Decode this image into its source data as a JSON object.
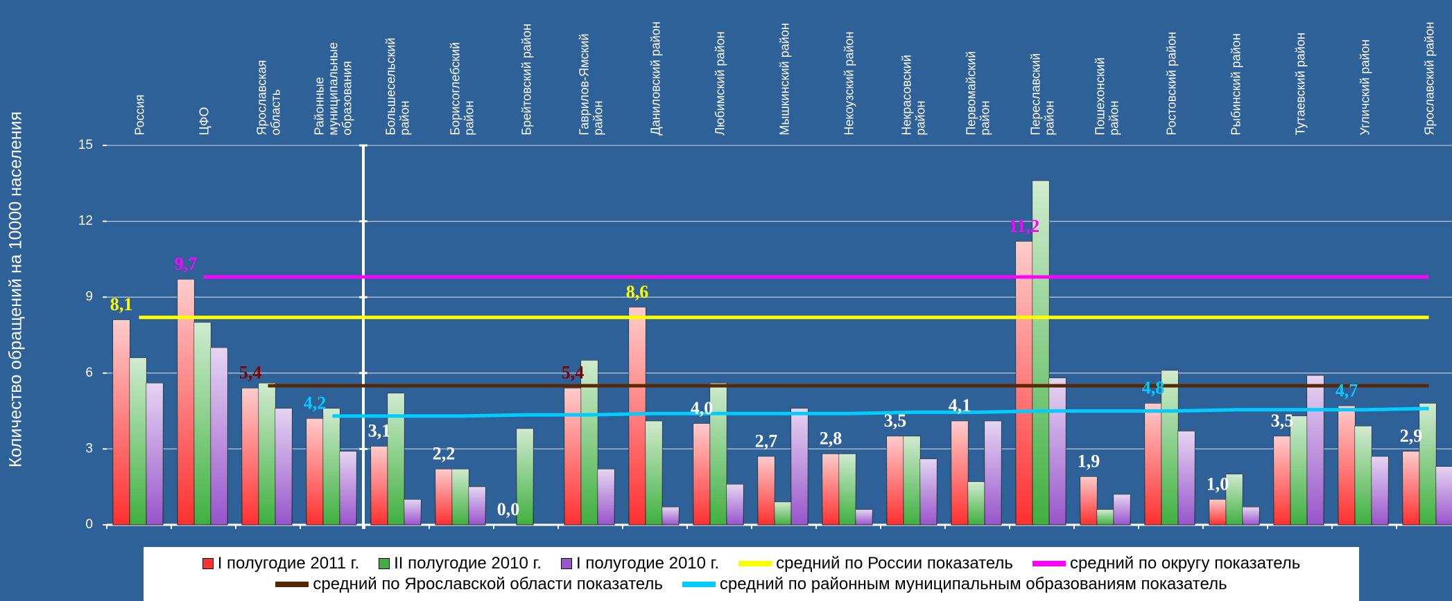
{
  "chart_data": {
    "type": "bar",
    "y_axis_label": "Количество обращений на 10000 населения",
    "categories": [
      "Россия",
      "ЦФО",
      "Ярославская\nобласть",
      "Районные\nмуниципальные\nобразования",
      "Большесельский\nрайон",
      "Борисоглебский\nрайон",
      "Брейтовский район",
      "Гаврилов-Ямский\nрайон",
      "Даниловский район",
      "Любимский район",
      "Мышкинский район",
      "Некоузский район",
      "Некрасовский\nрайон",
      "Первомайский\nрайон",
      "Переславский\nрайон",
      "Пошехонский\nрайон",
      "Ростовский район",
      "Рыбинский район",
      "Тутаевский район",
      "Угличский район",
      "Ярославский район"
    ],
    "series": [
      {
        "name": "I полугодие 2011 г.",
        "color": "#ff3030",
        "values": [
          8.1,
          9.7,
          5.4,
          4.2,
          3.1,
          2.2,
          0.0,
          5.4,
          8.6,
          4.0,
          2.7,
          2.8,
          3.5,
          4.1,
          11.2,
          1.9,
          4.8,
          1.0,
          3.5,
          4.7,
          2.9
        ],
        "value_labels": [
          "8,1",
          "9,7",
          "5,4",
          "4,2",
          "3,1",
          "2,2",
          "0,0",
          "5,4",
          "8,6",
          "4,0",
          "2,7",
          "2,8",
          "3,5",
          "4,1",
          "11,2",
          "1,9",
          "4,8",
          "1,0",
          "3,5",
          "4,7",
          "2,9"
        ],
        "value_label_colors": [
          "#ffff00",
          "#ff00ff",
          "#800000",
          "#00ccff",
          "#ffffff",
          "#ffffff",
          "#ffffff",
          "#800000",
          "#ffff00",
          "#ffffff",
          "#ffffff",
          "#ffffff",
          "#ffffff",
          "#ffffff",
          "#ff00ff",
          "#ffffff",
          "#00ccff",
          "#ffffff",
          "#ffffff",
          "#00ccff",
          "#ffffff"
        ]
      },
      {
        "name": "II полугодие 2010 г.",
        "color": "#40b040",
        "values": [
          6.6,
          8.0,
          5.6,
          4.6,
          5.2,
          2.2,
          3.8,
          6.5,
          4.1,
          5.6,
          0.9,
          2.8,
          3.5,
          1.7,
          13.6,
          0.6,
          6.1,
          2.0,
          4.3,
          3.9,
          4.8
        ]
      },
      {
        "name": "I полугодие 2010 г.",
        "color": "#9955cc",
        "values": [
          5.6,
          7.0,
          4.6,
          2.9,
          1.0,
          1.5,
          0,
          2.2,
          0.7,
          1.6,
          4.6,
          0.6,
          2.6,
          4.1,
          5.8,
          1.2,
          3.7,
          0.7,
          5.9,
          2.7,
          2.3
        ]
      }
    ],
    "lines": [
      {
        "name": "средний по России показатель",
        "color": "#ffff00",
        "values": [
          8.2,
          8.2,
          8.2,
          8.2,
          8.2,
          8.2,
          8.2,
          8.2,
          8.2,
          8.2,
          8.2,
          8.2,
          8.2,
          8.2,
          8.2,
          8.2,
          8.2,
          8.2,
          8.2,
          8.2,
          8.2
        ]
      },
      {
        "name": "средний по округу показатель",
        "color": "#ff00ff",
        "values": [
          null,
          9.8,
          9.8,
          9.8,
          9.8,
          9.8,
          9.8,
          9.8,
          9.8,
          9.8,
          9.8,
          9.8,
          9.8,
          9.8,
          9.8,
          9.8,
          9.8,
          9.8,
          9.8,
          9.8,
          9.8
        ]
      },
      {
        "name": "средний по Ярославской области показатель",
        "color": "#5a2800",
        "values": [
          null,
          null,
          5.5,
          5.5,
          5.5,
          5.5,
          5.5,
          5.5,
          5.5,
          5.5,
          5.5,
          5.5,
          5.5,
          5.5,
          5.5,
          5.5,
          5.5,
          5.5,
          5.5,
          5.5,
          5.5
        ]
      },
      {
        "name": "средний по районным муниципальным образованиям показатель",
        "color": "#00ccff",
        "values": [
          null,
          null,
          null,
          4.3,
          4.3,
          4.3,
          4.35,
          4.35,
          4.4,
          4.4,
          4.4,
          4.4,
          4.45,
          4.45,
          4.5,
          4.5,
          4.5,
          4.55,
          4.55,
          4.55,
          4.6
        ]
      }
    ],
    "ylim": [
      0,
      15
    ],
    "yticks": [
      0,
      3,
      6,
      9,
      12,
      15
    ],
    "grid": true
  }
}
